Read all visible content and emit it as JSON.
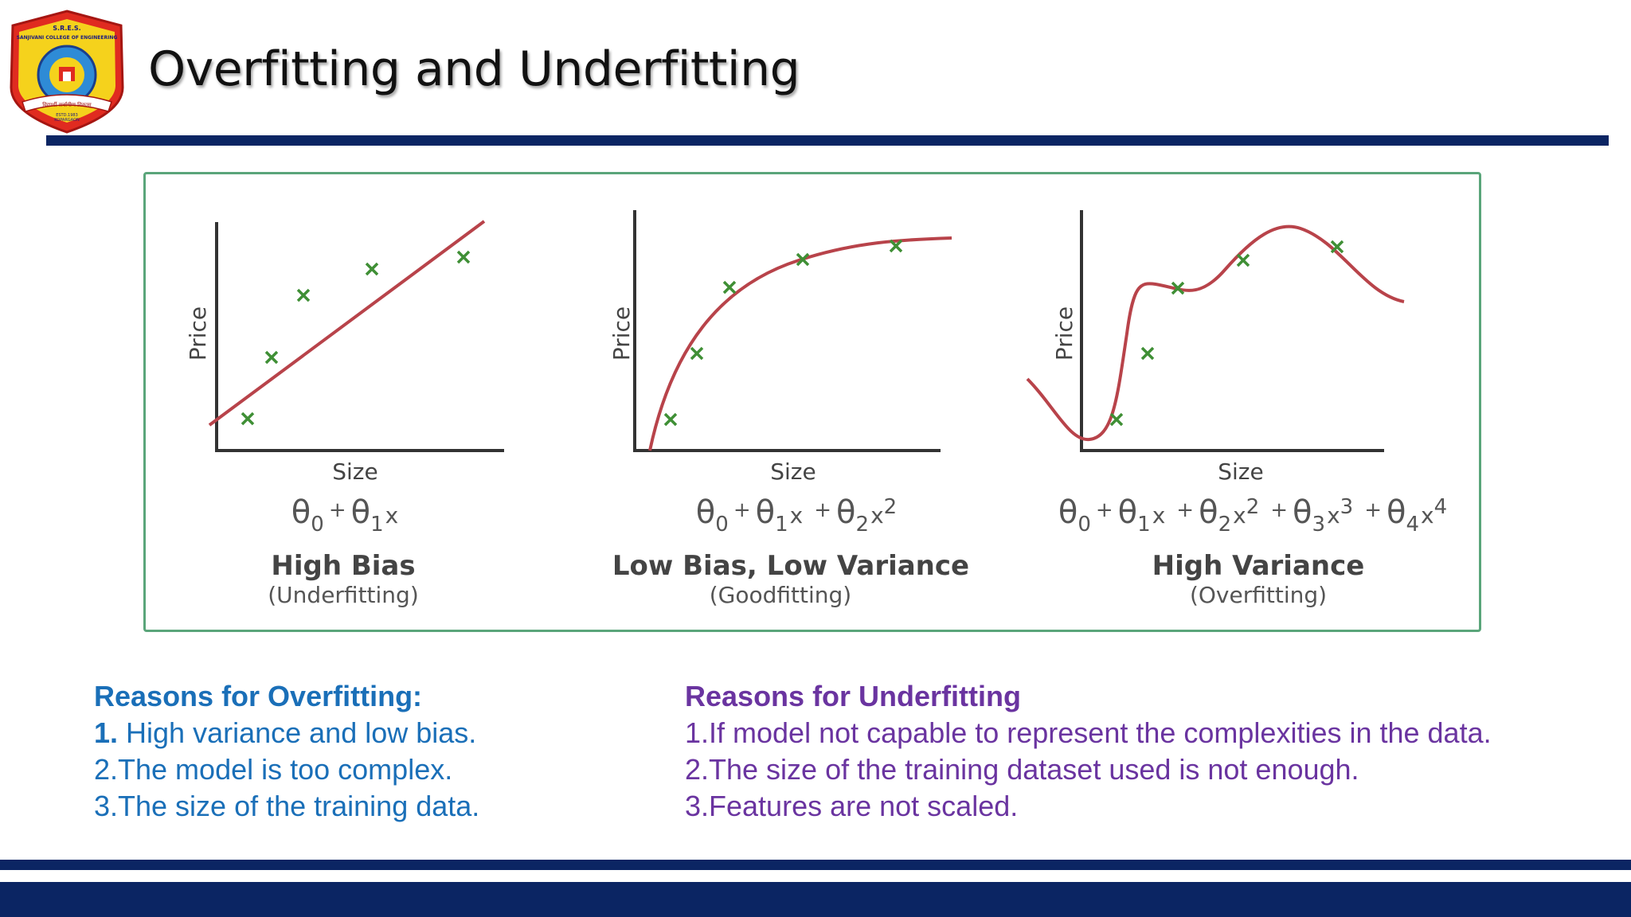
{
  "header": {
    "title": "Overfitting and Underfitting",
    "logo": {
      "top_text": "S.R.E.S.",
      "college": "SANJIVANI COLLEGE OF ENGINEERING",
      "motto": "विद्यार्थी सर्वांगीण विकास",
      "estd": "ESTD.1983",
      "place": "KOPARGAON"
    }
  },
  "panels": [
    {
      "ylabel": "Price",
      "xlabel": "Size",
      "formula": [
        "θ",
        "0",
        " + ",
        "θ",
        "1",
        "x"
      ],
      "heading": "High Bias",
      "subheading": "(Underfitting)"
    },
    {
      "ylabel": "Price",
      "xlabel": "Size",
      "heading": "Low Bias, Low Variance",
      "subheading": "(Goodfitting)"
    },
    {
      "ylabel": "Price",
      "xlabel": "Size",
      "heading": "High Variance",
      "subheading": "(Overfitting)"
    }
  ],
  "formulas": {
    "f1": {
      "t0": "θ",
      "s0": "0",
      "p1": "+",
      "t1": "θ",
      "s1": "1",
      "x1": "x"
    },
    "f2": {
      "t0": "θ",
      "s0": "0",
      "p1": "+",
      "t1": "θ",
      "s1": "1",
      "x1": "x",
      "p2": "+",
      "t2": "θ",
      "s2": "2",
      "x2": "x",
      "e2": "2"
    },
    "f3": {
      "t0": "θ",
      "s0": "0",
      "p1": "+",
      "t1": "θ",
      "s1": "1",
      "x1": "x",
      "p2": "+",
      "t2": "θ",
      "s2": "2",
      "x2": "x",
      "e2": "2",
      "p3": "+",
      "t3": "θ",
      "s3": "3",
      "x3": "x",
      "e3": "3",
      "p4": "+",
      "t4": "θ",
      "s4": "4",
      "x4": "x",
      "e4": "4"
    }
  },
  "reasons_overfitting": {
    "heading": "Reasons for Overfitting:",
    "items": [
      {
        "num": "1.",
        "text": " High variance and low bias."
      },
      {
        "text": "2.The model is too complex."
      },
      {
        "text": "3.The size of the training data."
      }
    ]
  },
  "reasons_underfitting": {
    "heading": "Reasons for Underfitting",
    "items": [
      {
        "text": "1.If model not capable to represent the complexities in the data."
      },
      {
        "text": "2.The size of the training dataset used is not enough."
      },
      {
        "text": "3.Features are not scaled."
      }
    ]
  },
  "colors": {
    "navy": "#0b2563",
    "frame": "#5aa57a",
    "curve": "#b8434a",
    "marker": "#3f8f35",
    "overfitting_text": "#1a6fb8",
    "underfitting_text": "#6a34a0"
  }
}
